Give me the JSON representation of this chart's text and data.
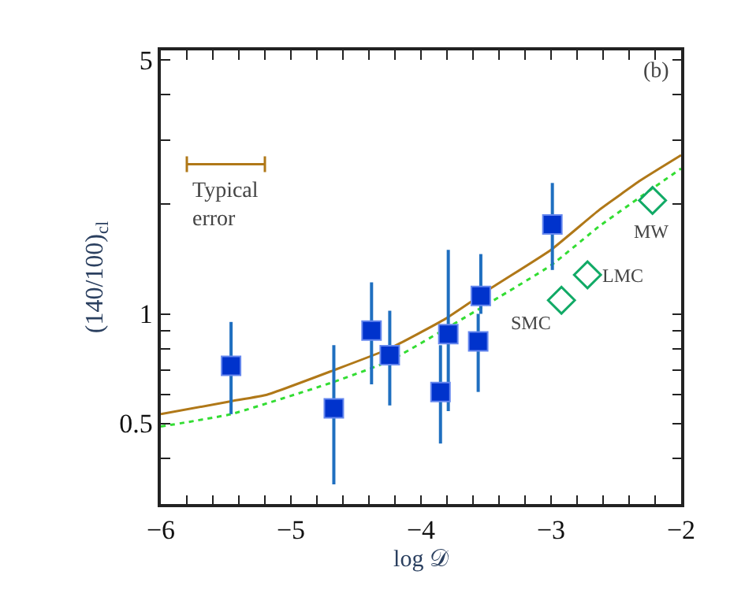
{
  "chart_data": {
    "type": "scatter",
    "xlabel": "log 𝒟",
    "ylabel": "(140/100)$_{cl}$",
    "xlim": [
      -6,
      -2
    ],
    "xticks": [
      -6,
      {
        "value": -5.8,
        "label": null
      },
      {
        "value": -5.6,
        "label": null
      },
      {
        "value": -5.4,
        "label": null
      },
      {
        "value": -5.2,
        "label": null
      },
      -5,
      {
        "value": -4.8,
        "label": null
      },
      {
        "value": -4.6,
        "label": null
      },
      {
        "value": -4.4,
        "label": null
      },
      {
        "value": -4.2,
        "label": null
      },
      -4,
      {
        "value": -3.8,
        "label": null
      },
      {
        "value": -3.6,
        "label": null
      },
      {
        "value": -3.4,
        "label": null
      },
      {
        "value": -3.2,
        "label": null
      },
      -3,
      {
        "value": -2.8,
        "label": null
      },
      {
        "value": -2.6,
        "label": null
      },
      {
        "value": -2.4,
        "label": null
      },
      {
        "value": -2.2,
        "label": null
      },
      -2
    ],
    "ylim": [
      0.3,
      5.3
    ],
    "log": "y",
    "yticks": [
      {
        "value": 0.3,
        "label": null
      },
      {
        "value": 0.4,
        "label": null
      },
      0.5,
      {
        "value": 0.6,
        "label": null
      },
      {
        "value": 0.7,
        "label": null
      },
      {
        "value": 0.8,
        "label": null
      },
      {
        "value": 0.9,
        "label": null
      },
      1,
      {
        "value": 2,
        "label": null
      },
      {
        "value": 3,
        "label": null
      },
      {
        "value": 4,
        "label": null
      },
      5
    ],
    "series": [
      {
        "type": "line",
        "color": "#b07818",
        "line_style": "solid",
        "marker": "none",
        "x": [
          -6,
          -5.46,
          -5.18,
          -4.67,
          -4.25,
          -3.81,
          -3.44,
          -3.0,
          -2.63,
          -2.31,
          -2.0
        ],
        "values": [
          0.53,
          0.575,
          0.6,
          0.7,
          0.8,
          0.97,
          1.19,
          1.5,
          1.93,
          2.33,
          2.73
        ]
      },
      {
        "type": "line",
        "color": "#33dd33",
        "line_style": "dotted",
        "marker": "none",
        "x": [
          -6,
          -5.46,
          -4.67,
          -4.25,
          -3.81,
          -3.44,
          -3.0,
          -2.63,
          -2.31,
          -2.0
        ],
        "values": [
          0.49,
          0.53,
          0.65,
          0.74,
          0.91,
          1.09,
          1.36,
          1.74,
          2.1,
          2.51
        ]
      },
      {
        "color": "#0033cc",
        "marker": "square",
        "x": [
          -5.46,
          -4.67,
          -4.38,
          -4.24,
          -3.85,
          -3.79,
          -3.56,
          -3.54,
          -2.99
        ],
        "values": [
          0.72,
          0.55,
          0.9,
          0.77,
          0.61,
          0.88,
          0.84,
          1.12,
          1.76
        ],
        "errors": [
          [
            0.53,
            0.95
          ],
          [
            0.34,
            0.82
          ],
          [
            0.64,
            1.22
          ],
          [
            0.56,
            1.02
          ],
          [
            0.44,
            0.82
          ],
          [
            0.54,
            1.5
          ],
          [
            0.61,
            1.0
          ],
          [
            1.0,
            1.46
          ],
          [
            1.32,
            2.29
          ]
        ]
      },
      {
        "color": "#11aa66",
        "marker": "diamond",
        "x": [
          -2.92,
          -2.72,
          -2.22
        ],
        "values": [
          1.09,
          1.28,
          2.05
        ]
      },
      {
        "type": "line",
        "color": "#b07818",
        "line_style": "solid",
        "marker": "none",
        "x": [
          -5.8,
          -5.2
        ],
        "values": [
          2.58,
          2.58
        ]
      }
    ],
    "annotations": [
      "(b)",
      {
        "text": "SMC",
        "x": -2.92,
        "y": 1.09
      },
      {
        "text": "LMC",
        "x": -2.72,
        "y": 1.28
      },
      {
        "text": "MW",
        "x": -2.22,
        "y": 2.05
      },
      {
        "text": "Typical\nerror",
        "x": -5.5,
        "y": 2.58
      }
    ]
  }
}
